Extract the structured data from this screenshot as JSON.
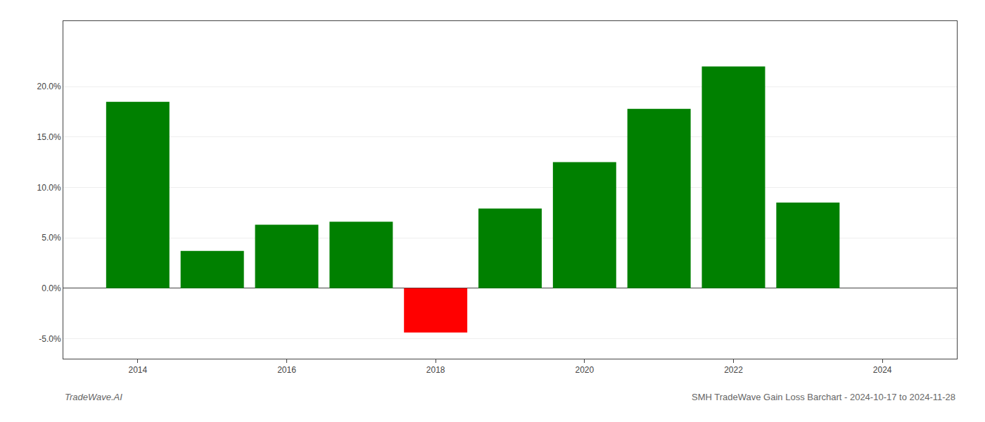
{
  "chart_data": {
    "type": "bar",
    "x": [
      2014,
      2015,
      2016,
      2017,
      2018,
      2019,
      2020,
      2021,
      2022,
      2023
    ],
    "values": [
      0.185,
      0.037,
      0.063,
      0.066,
      -0.044,
      0.079,
      0.125,
      0.178,
      0.22,
      0.085
    ],
    "colors": [
      "#008000",
      "#008000",
      "#008000",
      "#008000",
      "#ff0000",
      "#008000",
      "#008000",
      "#008000",
      "#008000",
      "#008000"
    ],
    "xlim": [
      2013.0,
      2025.0
    ],
    "xticks": [
      2014,
      2016,
      2018,
      2020,
      2022,
      2024
    ],
    "ylim": [
      -0.07,
      0.265
    ],
    "yticks": [
      {
        "value": -0.05,
        "label": "-5.0%"
      },
      {
        "value": 0.0,
        "label": "0.0%"
      },
      {
        "value": 0.05,
        "label": "5.0%"
      },
      {
        "value": 0.1,
        "label": "10.0%"
      },
      {
        "value": 0.15,
        "label": "15.0%"
      },
      {
        "value": 0.2,
        "label": "20.0%"
      }
    ],
    "grid": true,
    "annotations": [
      "TradeWave.AI",
      "SMH TradeWave Gain Loss Barchart - 2024-10-17 to 2024-11-28"
    ]
  }
}
